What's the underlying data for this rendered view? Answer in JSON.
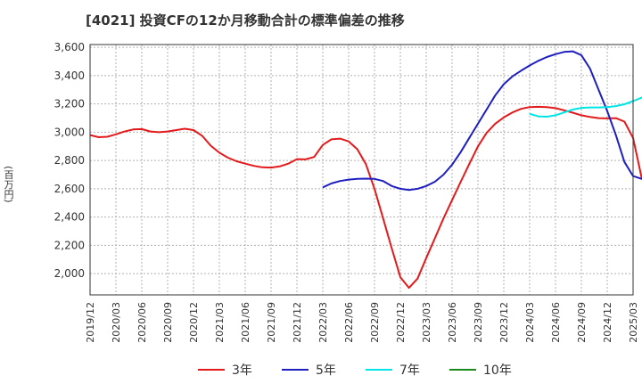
{
  "chart_data": {
    "type": "line",
    "title": "[4021]  投資CFの12か月移動合計の標準偏差の推移",
    "ylabel": "(百万円)",
    "xlabel": "",
    "ylim": [
      1850,
      3620
    ],
    "y_ticks": [
      2000,
      2200,
      2400,
      2600,
      2800,
      3000,
      3200,
      3400,
      3600
    ],
    "y_tick_labels": [
      "2,000",
      "2,200",
      "2,400",
      "2,600",
      "2,800",
      "3,000",
      "3,200",
      "3,400",
      "3,600"
    ],
    "x_tick_labels": [
      "2019/12",
      "2020/03",
      "2020/06",
      "2020/09",
      "2020/12",
      "2021/03",
      "2021/06",
      "2021/09",
      "2021/12",
      "2022/03",
      "2022/06",
      "2022/09",
      "2022/12",
      "2023/03",
      "2023/06",
      "2023/09",
      "2023/12",
      "2024/03",
      "2024/06",
      "2024/09",
      "2024/12",
      "2025/03"
    ],
    "grid": true,
    "legend_position": "bottom",
    "series": [
      {
        "name": "3年",
        "color": "#e31a1c",
        "points": [
          [
            "2019/12",
            2980
          ],
          [
            "2020/01",
            2965
          ],
          [
            "2020/02",
            2968
          ],
          [
            "2020/03",
            2985
          ],
          [
            "2020/04",
            3005
          ],
          [
            "2020/05",
            3020
          ],
          [
            "2020/06",
            3022
          ],
          [
            "2020/07",
            3005
          ],
          [
            "2020/08",
            3000
          ],
          [
            "2020/09",
            3005
          ],
          [
            "2020/10",
            3015
          ],
          [
            "2020/11",
            3025
          ],
          [
            "2020/12",
            3015
          ],
          [
            "2021/01",
            2975
          ],
          [
            "2021/02",
            2905
          ],
          [
            "2021/03",
            2855
          ],
          [
            "2021/04",
            2820
          ],
          [
            "2021/05",
            2795
          ],
          [
            "2021/06",
            2778
          ],
          [
            "2021/07",
            2762
          ],
          [
            "2021/08",
            2752
          ],
          [
            "2021/09",
            2750
          ],
          [
            "2021/10",
            2758
          ],
          [
            "2021/11",
            2778
          ],
          [
            "2021/12",
            2810
          ],
          [
            "2022/01",
            2808
          ],
          [
            "2022/02",
            2825
          ],
          [
            "2022/03",
            2910
          ],
          [
            "2022/04",
            2950
          ],
          [
            "2022/05",
            2955
          ],
          [
            "2022/06",
            2935
          ],
          [
            "2022/07",
            2880
          ],
          [
            "2022/08",
            2775
          ],
          [
            "2022/09",
            2600
          ],
          [
            "2022/10",
            2390
          ],
          [
            "2022/11",
            2180
          ],
          [
            "2022/12",
            1975
          ],
          [
            "2023/01",
            1900
          ],
          [
            "2023/02",
            1965
          ],
          [
            "2023/03",
            2110
          ],
          [
            "2023/04",
            2250
          ],
          [
            "2023/05",
            2390
          ],
          [
            "2023/06",
            2520
          ],
          [
            "2023/07",
            2650
          ],
          [
            "2023/08",
            2775
          ],
          [
            "2023/09",
            2900
          ],
          [
            "2023/10",
            2995
          ],
          [
            "2023/11",
            3060
          ],
          [
            "2023/12",
            3105
          ],
          [
            "2024/01",
            3140
          ],
          [
            "2024/02",
            3165
          ],
          [
            "2024/03",
            3178
          ],
          [
            "2024/04",
            3180
          ],
          [
            "2024/05",
            3178
          ],
          [
            "2024/06",
            3170
          ],
          [
            "2024/07",
            3155
          ],
          [
            "2024/08",
            3138
          ],
          [
            "2024/09",
            3120
          ],
          [
            "2024/10",
            3108
          ],
          [
            "2024/11",
            3100
          ],
          [
            "2024/12",
            3098
          ],
          [
            "2025/01",
            3100
          ],
          [
            "2025/02",
            3075
          ],
          [
            "2025/03",
            2960
          ],
          [
            "2025/04",
            2675
          ]
        ]
      },
      {
        "name": "5年",
        "color": "#1f1fbf",
        "points": [
          [
            "2022/03",
            2610
          ],
          [
            "2022/04",
            2638
          ],
          [
            "2022/05",
            2655
          ],
          [
            "2022/06",
            2665
          ],
          [
            "2022/07",
            2670
          ],
          [
            "2022/08",
            2672
          ],
          [
            "2022/09",
            2670
          ],
          [
            "2022/10",
            2655
          ],
          [
            "2022/11",
            2620
          ],
          [
            "2022/12",
            2600
          ],
          [
            "2023/01",
            2592
          ],
          [
            "2023/02",
            2600
          ],
          [
            "2023/03",
            2620
          ],
          [
            "2023/04",
            2650
          ],
          [
            "2023/05",
            2700
          ],
          [
            "2023/06",
            2770
          ],
          [
            "2023/07",
            2860
          ],
          [
            "2023/08",
            2960
          ],
          [
            "2023/09",
            3060
          ],
          [
            "2023/10",
            3160
          ],
          [
            "2023/11",
            3260
          ],
          [
            "2023/12",
            3340
          ],
          [
            "2024/01",
            3395
          ],
          [
            "2024/02",
            3435
          ],
          [
            "2024/03",
            3472
          ],
          [
            "2024/04",
            3505
          ],
          [
            "2024/05",
            3532
          ],
          [
            "2024/06",
            3552
          ],
          [
            "2024/07",
            3568
          ],
          [
            "2024/08",
            3572
          ],
          [
            "2024/09",
            3545
          ],
          [
            "2024/10",
            3450
          ],
          [
            "2024/11",
            3300
          ],
          [
            "2024/12",
            3150
          ],
          [
            "2025/01",
            2980
          ],
          [
            "2025/02",
            2790
          ],
          [
            "2025/03",
            2690
          ],
          [
            "2025/04",
            2670
          ],
          [
            "2025/05",
            2705
          ]
        ]
      },
      {
        "name": "7年",
        "color": "#00e5e5",
        "points": [
          [
            "2024/03",
            3130
          ],
          [
            "2024/04",
            3112
          ],
          [
            "2024/05",
            3110
          ],
          [
            "2024/06",
            3120
          ],
          [
            "2024/07",
            3140
          ],
          [
            "2024/08",
            3160
          ],
          [
            "2024/09",
            3172
          ],
          [
            "2024/10",
            3175
          ],
          [
            "2024/11",
            3175
          ],
          [
            "2024/12",
            3178
          ],
          [
            "2025/01",
            3185
          ],
          [
            "2025/02",
            3198
          ],
          [
            "2025/03",
            3220
          ],
          [
            "2025/04",
            3245
          ],
          [
            "2025/05",
            3275
          ]
        ]
      },
      {
        "name": "10年",
        "color": "#1a8a1a",
        "points": []
      }
    ]
  }
}
